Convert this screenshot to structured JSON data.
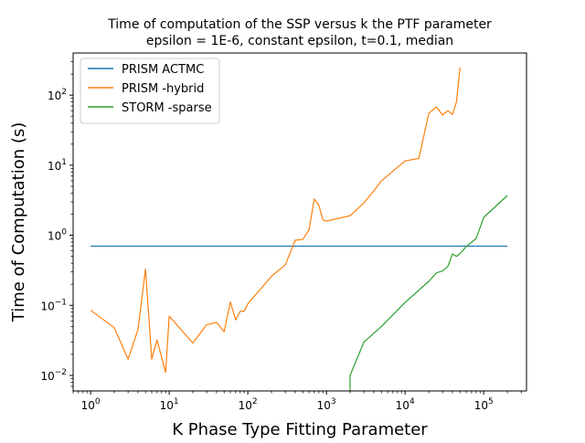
{
  "chart_data": {
    "type": "line",
    "title_lines": [
      "Time of computation of the SSP versus k the PTF parameter",
      "epsilon = 1E-6, constant epsilon, t=0.1, median"
    ],
    "xlabel": "K Phase Type Fitting Parameter",
    "ylabel": "Time of Computation (s)",
    "xscale": "log",
    "yscale": "log",
    "xlim": [
      0.6,
      350000
    ],
    "ylim": [
      0.006,
      400
    ],
    "x_ticks": [
      {
        "value": 1,
        "base": "10",
        "exp": "0"
      },
      {
        "value": 10,
        "base": "10",
        "exp": "1"
      },
      {
        "value": 100,
        "base": "10",
        "exp": "2"
      },
      {
        "value": 1000,
        "base": "10",
        "exp": "3"
      },
      {
        "value": 10000,
        "base": "10",
        "exp": "4"
      },
      {
        "value": 100000,
        "base": "10",
        "exp": "5"
      }
    ],
    "y_ticks": [
      {
        "value": 0.01,
        "base": "10",
        "exp": "−2"
      },
      {
        "value": 0.1,
        "base": "10",
        "exp": "−1"
      },
      {
        "value": 1,
        "base": "10",
        "exp": "0"
      },
      {
        "value": 10,
        "base": "10",
        "exp": "1"
      },
      {
        "value": 100,
        "base": "10",
        "exp": "2"
      }
    ],
    "grid": false,
    "legend_position": "top-left",
    "series": [
      {
        "name": "PRISM ACTMC",
        "color": "#1f77b4",
        "points": [
          [
            1,
            0.7
          ],
          [
            200000,
            0.7
          ]
        ]
      },
      {
        "name": "PRISM -hybrid",
        "color": "#ff7f0e",
        "points": [
          [
            1,
            0.085
          ],
          [
            2,
            0.048
          ],
          [
            3,
            0.017
          ],
          [
            4,
            0.045
          ],
          [
            5,
            0.33
          ],
          [
            6,
            0.017
          ],
          [
            7,
            0.032
          ],
          [
            9,
            0.011
          ],
          [
            10,
            0.07
          ],
          [
            20,
            0.029
          ],
          [
            30,
            0.053
          ],
          [
            40,
            0.057
          ],
          [
            50,
            0.042
          ],
          [
            60,
            0.112
          ],
          [
            70,
            0.062
          ],
          [
            80,
            0.082
          ],
          [
            90,
            0.083
          ],
          [
            100,
            0.105
          ],
          [
            200,
            0.26
          ],
          [
            300,
            0.38
          ],
          [
            400,
            0.85
          ],
          [
            500,
            0.87
          ],
          [
            600,
            1.2
          ],
          [
            700,
            3.3
          ],
          [
            800,
            2.7
          ],
          [
            900,
            1.65
          ],
          [
            1000,
            1.6
          ],
          [
            2000,
            1.9
          ],
          [
            3000,
            2.9
          ],
          [
            4000,
            4.3
          ],
          [
            5000,
            6.0
          ],
          [
            10000,
            11.5
          ],
          [
            15000,
            12.5
          ],
          [
            20000,
            55
          ],
          [
            25000,
            68
          ],
          [
            30000,
            52
          ],
          [
            35000,
            60
          ],
          [
            40000,
            53
          ],
          [
            45000,
            80
          ],
          [
            50000,
            250
          ]
        ]
      },
      {
        "name": "STORM -sparse",
        "color": "#2ca02c",
        "points": [
          [
            2000,
            0.0035
          ],
          [
            2000,
            0.01
          ],
          [
            3000,
            0.03
          ],
          [
            5000,
            0.05
          ],
          [
            10000,
            0.11
          ],
          [
            20000,
            0.22
          ],
          [
            25000,
            0.29
          ],
          [
            30000,
            0.31
          ],
          [
            35000,
            0.36
          ],
          [
            40000,
            0.54
          ],
          [
            45000,
            0.5
          ],
          [
            50000,
            0.55
          ],
          [
            60000,
            0.69
          ],
          [
            80000,
            0.9
          ],
          [
            100000,
            1.8
          ],
          [
            200000,
            3.7
          ]
        ]
      }
    ]
  }
}
